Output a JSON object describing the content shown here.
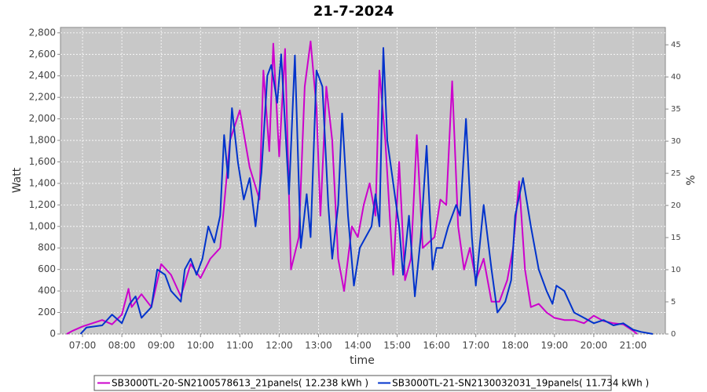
{
  "chart_data": {
    "type": "line",
    "title": "21-7-2024",
    "x_label": "time",
    "y_label": "Watt",
    "y2_label": "%",
    "xlim": [
      6.44,
      21.82
    ],
    "xticks": [
      {
        "value": 7,
        "label": "07:00"
      },
      {
        "value": 8,
        "label": "08:00"
      },
      {
        "value": 9,
        "label": "09:00"
      },
      {
        "value": 10,
        "label": "10:00"
      },
      {
        "value": 11,
        "label": "11:00"
      },
      {
        "value": 12,
        "label": "12:00"
      },
      {
        "value": 13,
        "label": "13:00"
      },
      {
        "value": 14,
        "label": "14:00"
      },
      {
        "value": 15,
        "label": "15:00"
      },
      {
        "value": 16,
        "label": "16:00"
      },
      {
        "value": 17,
        "label": "17:00"
      },
      {
        "value": 18,
        "label": "18:00"
      },
      {
        "value": 19,
        "label": "19:00"
      },
      {
        "value": 20,
        "label": "20:00"
      },
      {
        "value": 21,
        "label": "21:00"
      }
    ],
    "ylim": [
      0,
      2850
    ],
    "yticks": [
      0,
      200,
      400,
      600,
      800,
      {
        "value": 1000,
        "label": "1,000"
      },
      {
        "value": 1200,
        "label": "1,200"
      },
      {
        "value": 1400,
        "label": "1,400"
      },
      {
        "value": 1600,
        "label": "1,600"
      },
      {
        "value": 1800,
        "label": "1,800"
      },
      {
        "value": 2000,
        "label": "2,000"
      },
      {
        "value": 2200,
        "label": "2,200"
      },
      {
        "value": 2400,
        "label": "2,400"
      },
      {
        "value": 2600,
        "label": "2,600"
      },
      {
        "value": 2800,
        "label": "2,800"
      }
    ],
    "y2lim": [
      0,
      47.7
    ],
    "y2ticks": [
      0,
      5,
      10,
      15,
      20,
      25,
      30,
      35,
      40,
      45
    ],
    "grid": true,
    "series": [
      {
        "name": "SB3000TL-20-SN2100578613_21panels( 12.238 kWh )",
        "color": "#cc00cc",
        "x": [
          6.6,
          6.75,
          7.0,
          7.25,
          7.5,
          7.75,
          8.0,
          8.17,
          8.25,
          8.5,
          8.75,
          9.0,
          9.25,
          9.5,
          9.75,
          10.0,
          10.25,
          10.5,
          10.75,
          11.0,
          11.25,
          11.5,
          11.6,
          11.75,
          11.85,
          12.0,
          12.15,
          12.3,
          12.5,
          12.65,
          12.8,
          12.95,
          13.05,
          13.2,
          13.35,
          13.5,
          13.65,
          13.85,
          14.0,
          14.15,
          14.3,
          14.45,
          14.55,
          14.7,
          14.9,
          15.05,
          15.2,
          15.35,
          15.5,
          15.65,
          15.8,
          15.95,
          16.1,
          16.25,
          16.4,
          16.55,
          16.7,
          16.85,
          17.0,
          17.2,
          17.4,
          17.6,
          17.8,
          17.95,
          18.1,
          18.25,
          18.4,
          18.6,
          18.8,
          19.0,
          19.25,
          19.5,
          19.75,
          20.0,
          20.25,
          20.5,
          20.75,
          21.0,
          21.1
        ],
        "values": [
          0,
          30,
          70,
          100,
          130,
          90,
          180,
          420,
          250,
          370,
          250,
          650,
          550,
          350,
          650,
          520,
          700,
          800,
          1800,
          2080,
          1550,
          1250,
          2450,
          1700,
          2700,
          1650,
          2650,
          600,
          900,
          2300,
          2720,
          2100,
          1100,
          2300,
          1800,
          700,
          400,
          1000,
          900,
          1200,
          1400,
          1100,
          2450,
          1800,
          550,
          1600,
          500,
          700,
          1850,
          800,
          850,
          900,
          1250,
          1200,
          2350,
          1000,
          600,
          800,
          500,
          700,
          300,
          300,
          500,
          800,
          1420,
          600,
          250,
          280,
          200,
          150,
          130,
          130,
          100,
          170,
          120,
          100,
          90,
          30,
          0
        ]
      },
      {
        "name": "SB3000TL-21-SN2130032031_19panels( 11.734 kWh )",
        "color": "#0033cc",
        "x": [
          6.95,
          7.1,
          7.3,
          7.5,
          7.75,
          8.0,
          8.2,
          8.35,
          8.5,
          8.75,
          8.9,
          9.1,
          9.25,
          9.5,
          9.6,
          9.75,
          9.9,
          10.05,
          10.2,
          10.35,
          10.5,
          10.6,
          10.7,
          10.8,
          10.95,
          11.1,
          11.25,
          11.4,
          11.55,
          11.7,
          11.8,
          11.95,
          12.05,
          12.25,
          12.4,
          12.55,
          12.7,
          12.8,
          12.95,
          13.1,
          13.25,
          13.35,
          13.5,
          13.6,
          13.75,
          13.9,
          14.05,
          14.2,
          14.35,
          14.45,
          14.55,
          14.65,
          14.75,
          14.9,
          15.05,
          15.15,
          15.3,
          15.45,
          15.6,
          15.75,
          15.9,
          16.0,
          16.15,
          16.3,
          16.5,
          16.6,
          16.75,
          16.9,
          17.0,
          17.2,
          17.4,
          17.55,
          17.75,
          17.9,
          18.0,
          18.2,
          18.4,
          18.6,
          18.8,
          18.95,
          19.05,
          19.25,
          19.5,
          19.75,
          20.0,
          20.25,
          20.5,
          20.75,
          21.0,
          21.2,
          21.5
        ],
        "values": [
          0,
          60,
          70,
          80,
          180,
          100,
          280,
          350,
          150,
          250,
          600,
          550,
          400,
          300,
          600,
          700,
          550,
          700,
          1000,
          850,
          1100,
          1850,
          1450,
          2100,
          1600,
          1250,
          1450,
          1000,
          1500,
          2400,
          2500,
          2150,
          2600,
          1300,
          2590,
          800,
          1300,
          900,
          2450,
          2300,
          1200,
          700,
          1200,
          2050,
          1100,
          450,
          800,
          900,
          1000,
          1300,
          1000,
          2660,
          1800,
          1400,
          1000,
          550,
          1100,
          350,
          900,
          1750,
          600,
          800,
          800,
          1000,
          1200,
          1100,
          2000,
          900,
          450,
          1200,
          600,
          200,
          300,
          500,
          1100,
          1450,
          1000,
          600,
          400,
          280,
          450,
          400,
          200,
          150,
          100,
          130,
          80,
          100,
          40,
          20,
          0
        ]
      }
    ]
  }
}
